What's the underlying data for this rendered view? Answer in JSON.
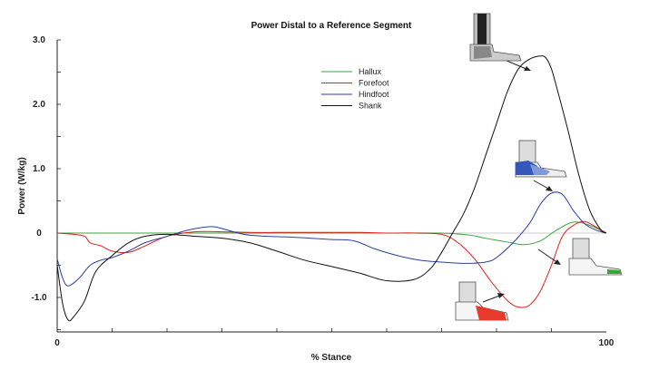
{
  "chart_data": {
    "type": "line",
    "title": "Power Distal to a Reference Segment",
    "xlabel": "% Stance",
    "ylabel": "Power (W/kg)",
    "xlim": [
      0,
      100
    ],
    "ylim": [
      -1.5,
      3.0
    ],
    "x_ticks": [
      0,
      100
    ],
    "y_ticks": [
      {
        "value": 3.0,
        "label": "3.0"
      },
      {
        "value": 2.0,
        "label": "2.0"
      },
      {
        "value": 1.0,
        "label": "1.0"
      },
      {
        "value": 0,
        "label": "0"
      },
      {
        "value": -1.0,
        "label": "-1.0"
      }
    ],
    "legend_position": "top-center",
    "series": [
      {
        "name": "Hallux",
        "color": "#3aa63a",
        "x": [
          0,
          10,
          20,
          30,
          40,
          50,
          60,
          70,
          75,
          78,
          82,
          85,
          88,
          91,
          94,
          97,
          100
        ],
        "y": [
          0,
          0,
          0,
          0,
          0,
          0,
          0,
          0,
          -0.03,
          -0.08,
          -0.14,
          -0.18,
          -0.12,
          0.05,
          0.17,
          0.12,
          0
        ]
      },
      {
        "name": "Forefoot",
        "color": "#e02020",
        "x": [
          0,
          3,
          5,
          6,
          8,
          10,
          13,
          16,
          20,
          25,
          30,
          35,
          40,
          45,
          50,
          55,
          60,
          65,
          70,
          73,
          76,
          79,
          82,
          84,
          86,
          88,
          90,
          92,
          94,
          96,
          98,
          100
        ],
        "y": [
          0,
          -0.02,
          -0.05,
          -0.15,
          -0.2,
          -0.28,
          -0.3,
          -0.2,
          -0.05,
          0.02,
          0.02,
          0.01,
          0.01,
          0.01,
          0.01,
          0.01,
          0,
          0,
          -0.02,
          -0.15,
          -0.4,
          -0.75,
          -1.05,
          -1.15,
          -1.12,
          -0.9,
          -0.5,
          -0.05,
          0.12,
          0.18,
          0.1,
          0
        ]
      },
      {
        "name": "Hindfoot",
        "color": "#2b3fa0",
        "x": [
          0,
          1,
          2,
          4,
          6,
          8,
          10,
          13,
          16,
          20,
          24,
          28,
          30,
          34,
          38,
          42,
          46,
          50,
          54,
          58,
          62,
          66,
          70,
          74,
          78,
          80,
          83,
          86,
          88,
          90,
          92,
          94,
          96,
          98,
          100
        ],
        "y": [
          -0.4,
          -0.7,
          -0.82,
          -0.7,
          -0.5,
          -0.42,
          -0.38,
          -0.28,
          -0.15,
          -0.05,
          0.05,
          0.1,
          0.07,
          -0.02,
          -0.05,
          -0.06,
          -0.08,
          -0.1,
          -0.12,
          -0.25,
          -0.35,
          -0.42,
          -0.45,
          -0.47,
          -0.45,
          -0.38,
          -0.15,
          0.15,
          0.45,
          0.62,
          0.6,
          0.35,
          0.15,
          0.05,
          0
        ]
      },
      {
        "name": "Shank",
        "color": "#111111",
        "x": [
          0,
          1,
          2,
          3,
          5,
          7,
          10,
          13,
          16,
          20,
          25,
          30,
          35,
          40,
          45,
          50,
          55,
          60,
          65,
          68,
          70,
          72,
          74,
          76,
          78,
          80,
          82,
          84,
          86,
          88,
          89,
          90,
          91,
          93,
          95,
          97,
          99,
          100
        ],
        "y": [
          -0.5,
          -1.1,
          -1.35,
          -1.3,
          -1.05,
          -0.6,
          -0.35,
          -0.15,
          -0.05,
          -0.02,
          -0.05,
          -0.08,
          -0.15,
          -0.28,
          -0.42,
          -0.52,
          -0.62,
          -0.74,
          -0.72,
          -0.55,
          -0.3,
          0.0,
          0.3,
          0.7,
          1.2,
          1.7,
          2.2,
          2.55,
          2.7,
          2.75,
          2.72,
          2.55,
          2.25,
          1.6,
          0.9,
          0.35,
          0.05,
          0
        ]
      }
    ]
  },
  "icons": [
    "shank-foot-icon",
    "hindfoot-foot-icon",
    "hallux-foot-icon",
    "forefoot-foot-icon"
  ]
}
